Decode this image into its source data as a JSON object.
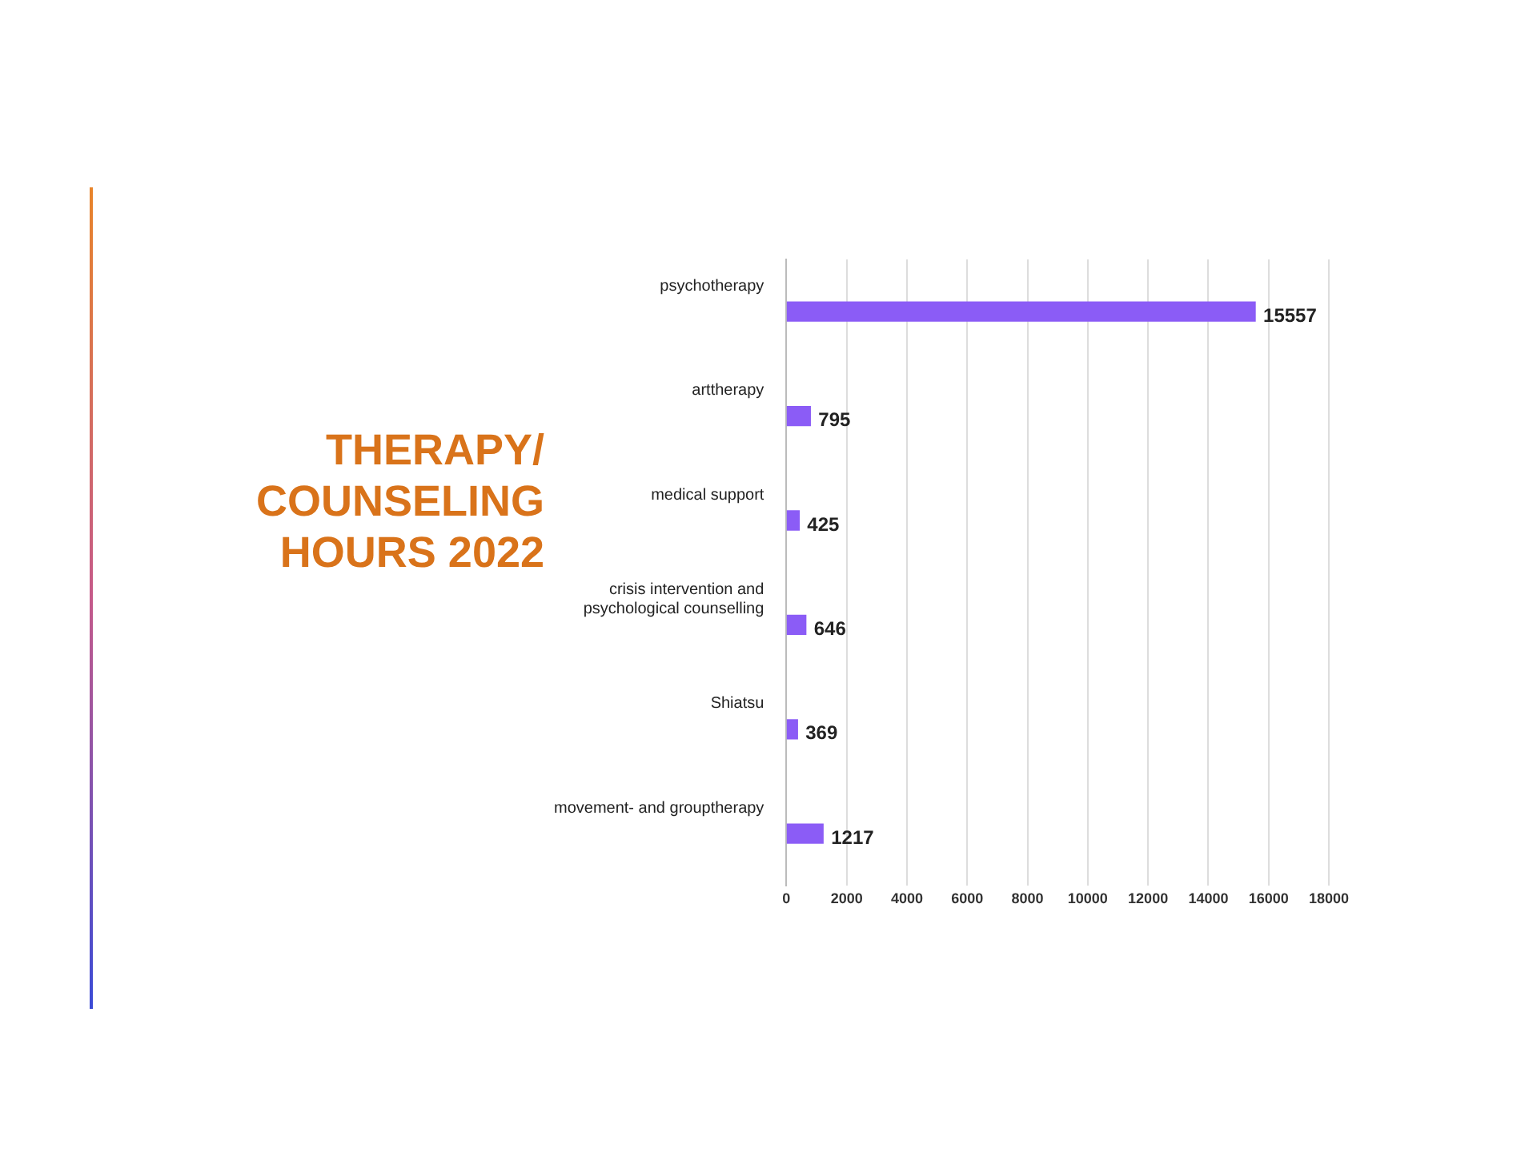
{
  "chart_data": {
    "type": "bar",
    "orientation": "horizontal",
    "title": "THERAPY/ COUNSELING HOURS 2022",
    "categories": [
      "psychotherapy",
      "arttherapy",
      "medical support",
      "crisis intervention and psychological counselling",
      "Shiatsu",
      "movement- and grouptherapy"
    ],
    "values": [
      15557,
      795,
      425,
      646,
      369,
      1217
    ],
    "color": "#8b5cf6",
    "xlim": [
      0,
      18000
    ],
    "xticks": [
      0,
      2000,
      4000,
      6000,
      8000,
      10000,
      12000,
      14000,
      16000,
      18000
    ],
    "grid": "x",
    "data_labels": true,
    "legend": false
  }
}
